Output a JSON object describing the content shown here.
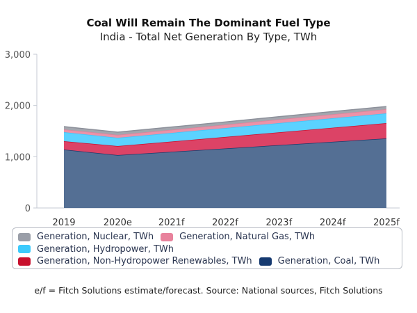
{
  "chart_data": {
    "type": "area",
    "stacked": true,
    "title": "Coal Will Remain The Dominant Fuel Type",
    "subtitle": "India - Total Net Generation By Type, TWh",
    "categories": [
      "2019",
      "2020e",
      "2021f",
      "2022f",
      "2023f",
      "2024f",
      "2025f"
    ],
    "ylim": [
      0,
      3000
    ],
    "yticks": [
      0,
      1000,
      2000,
      3000
    ],
    "ytick_labels": [
      "0",
      "1,000",
      "2,000",
      "3,000"
    ],
    "grid": false,
    "legend_position": "bottom",
    "series": [
      {
        "name": "Generation, Coal, TWh",
        "color": "#546f94",
        "line": "#1b3a6b",
        "values": [
          1140,
          1031,
          1096,
          1161,
          1227,
          1292,
          1357
        ]
      },
      {
        "name": "Generation, Non-Hydropower Renewables, TWh",
        "color": "#dc4366",
        "line": "#c8102e",
        "values": [
          163,
          177,
          201,
          226,
          250,
          275,
          299
        ]
      },
      {
        "name": "Generation, Hydropower, TWh",
        "color": "#5bd2ff",
        "line": "#3cc6fb",
        "values": [
          176,
          162,
          168,
          173,
          179,
          184,
          190
        ]
      },
      {
        "name": "Generation, Natural Gas, TWh",
        "color": "#eb93a8",
        "line": "#e2819a",
        "values": [
          54,
          55,
          60,
          65,
          71,
          76,
          81
        ]
      },
      {
        "name": "Generation, Nuclear, TWh",
        "color": "#a3a6ae",
        "line": "#8c909a",
        "values": [
          55,
          54,
          54,
          54,
          54,
          54,
          54
        ]
      }
    ],
    "legend_swatches": {
      "Nuclear": "#9a9ea8",
      "Natural Gas": "#e8829c",
      "Hydropower": "#3ccafc",
      "Non-Hydropower Renewables": "#c8102e",
      "Coal": "#163a70"
    }
  },
  "footnote": "e/f = Fitch Solutions estimate/forecast. Source: National sources, Fitch Solutions"
}
